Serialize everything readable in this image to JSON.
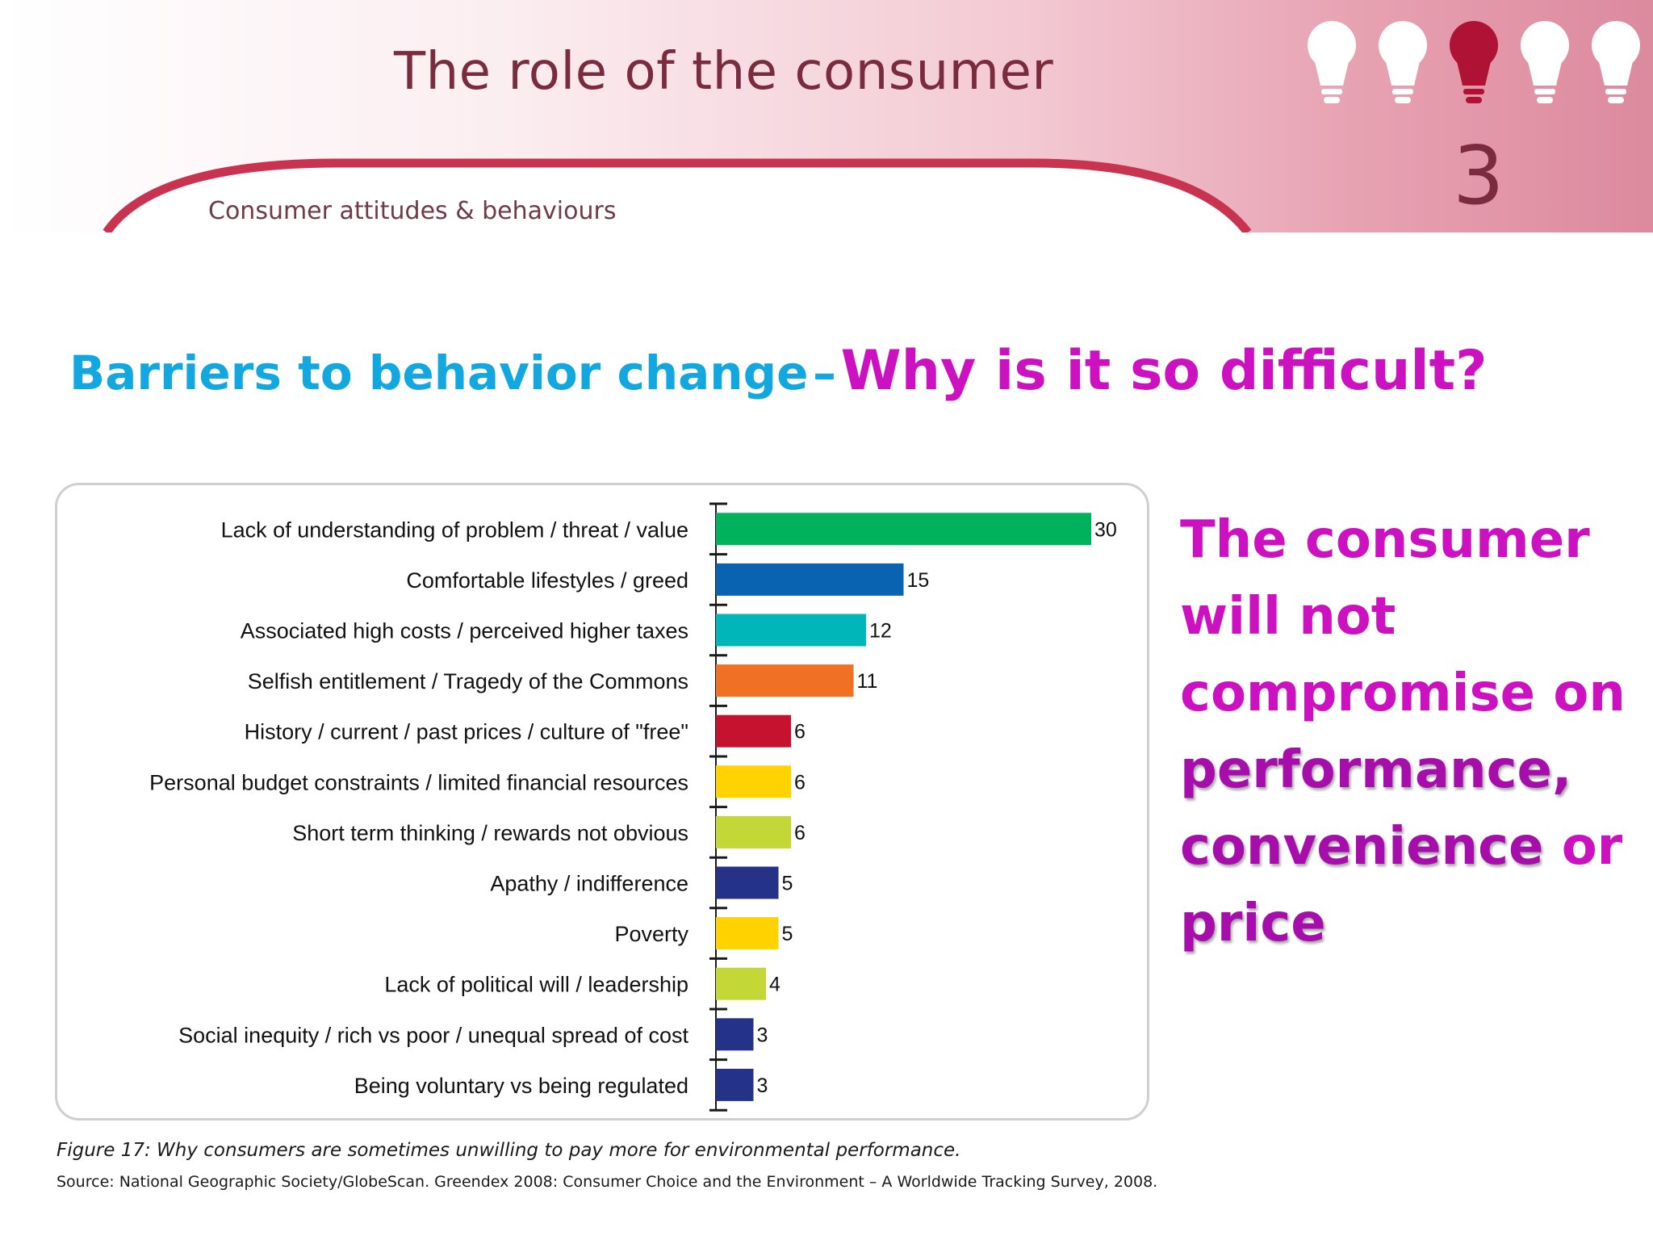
{
  "header": {
    "title": "The role of the consumer",
    "subtitle": "Consumer attitudes & behaviours",
    "slide_number": "3",
    "bulb_count": 5,
    "active_bulb": 3,
    "colors": {
      "bulb_active": "#b01235",
      "bulb_inactive": "#ffffff",
      "arc": "#c8344f"
    }
  },
  "heading": {
    "part1": "Barriers to behavior change",
    "dash": "–",
    "part2": "Why is it so difficult?",
    "color_part1": "#12a8df",
    "color_part2": "#cc11c0"
  },
  "chart_data": {
    "type": "bar",
    "orientation": "horizontal",
    "categories": [
      "Lack of understanding of problem / threat / value",
      "Comfortable lifestyles / greed",
      "Associated high costs / perceived higher taxes",
      "Selfish entitlement / Tragedy of the Commons",
      "History / current / past prices / culture of \"free\"",
      "Personal budget constraints / limited financial resources",
      "Short term thinking / rewards not obvious",
      "Apathy / indifference",
      "Poverty",
      "Lack of political will / leadership",
      "Social inequity / rich vs poor / unequal spread of cost",
      "Being voluntary vs being regulated"
    ],
    "values": [
      30,
      15,
      12,
      11,
      6,
      6,
      6,
      5,
      5,
      4,
      3,
      3
    ],
    "bar_colors": [
      "#00b25b",
      "#0a63b0",
      "#00b6b9",
      "#f07024",
      "#c4122f",
      "#ffd200",
      "#c3d837",
      "#243287",
      "#ffd200",
      "#c3d837",
      "#243287",
      "#243287"
    ],
    "data_labels": [
      "30",
      "15",
      "12",
      "11",
      "6",
      "6",
      "6",
      "5",
      "5",
      "4",
      "3",
      "3"
    ],
    "xlim": [
      0,
      30
    ],
    "grid": false,
    "title": "",
    "xlabel": "",
    "ylabel": ""
  },
  "caption": {
    "figure": "Figure 17: Why consumers are sometimes unwilling to pay more for environmental performance.",
    "source": "Source: National Geographic Society/GlobeScan. Greendex 2008: Consumer Choice and the Environment – A Worldwide Tracking Survey, 2008."
  },
  "statement": {
    "lead": "The consumer will not compromise on",
    "emph1": "performance,",
    "emph2": "convenience",
    "or": "or",
    "emph3": "price"
  }
}
